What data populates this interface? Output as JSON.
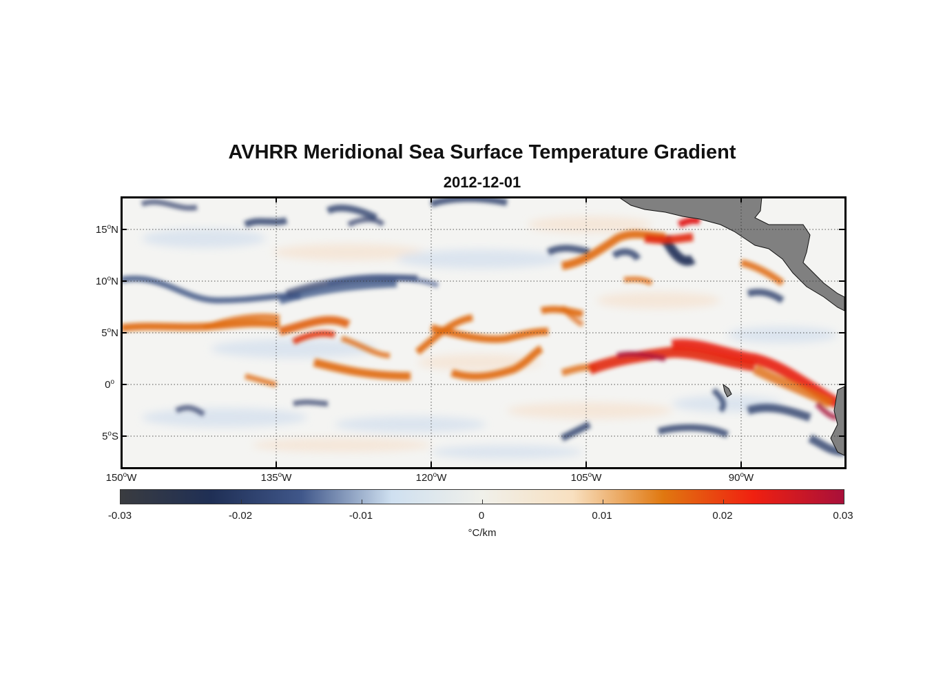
{
  "map": {
    "title": "AVHRR Meridional Sea Surface Temperature Gradient",
    "subtitle": "2012-12-01",
    "lat_ticks": [
      {
        "deg": "15",
        "hemi": "N"
      },
      {
        "deg": "10",
        "hemi": "N"
      },
      {
        "deg": "5",
        "hemi": "N"
      },
      {
        "deg": "0",
        "hemi": ""
      },
      {
        "deg": "5",
        "hemi": "S"
      }
    ],
    "lon_ticks": [
      {
        "deg": "150",
        "hemi": "W"
      },
      {
        "deg": "135",
        "hemi": "W"
      },
      {
        "deg": "120",
        "hemi": "W"
      },
      {
        "deg": "105",
        "hemi": "W"
      },
      {
        "deg": "90",
        "hemi": "W"
      }
    ],
    "colorbar": {
      "ticks": [
        "-0.03",
        "-0.02",
        "-0.01",
        "0",
        "0.01",
        "0.02",
        "0.03"
      ],
      "unit": "°C/km",
      "colors": [
        "#3a3c40",
        "#1f2f55",
        "#40578a",
        "#cfe0f0",
        "#f0f0ea",
        "#f8e0c0",
        "#e07810",
        "#f02010",
        "#a8103a"
      ]
    },
    "colors": {
      "land": "#808080",
      "warm": "#e06010",
      "hot": "#e01818",
      "cold": "#2c3d6a"
    }
  }
}
